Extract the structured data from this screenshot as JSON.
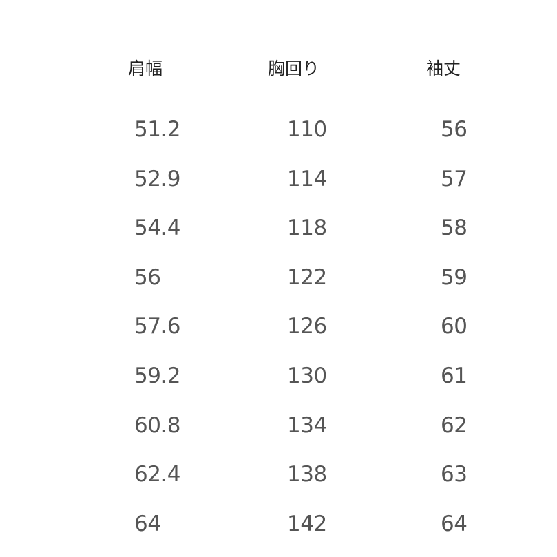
{
  "table": {
    "headers": [
      "肩幅",
      "胸回り",
      "袖丈"
    ],
    "rows": [
      [
        "51.2",
        "110",
        "56"
      ],
      [
        "52.9",
        "114",
        "57"
      ],
      [
        "54.4",
        "118",
        "58"
      ],
      [
        "56",
        "122",
        "59"
      ],
      [
        "57.6",
        "126",
        "60"
      ],
      [
        "59.2",
        "130",
        "61"
      ],
      [
        "60.8",
        "134",
        "62"
      ],
      [
        "62.4",
        "138",
        "63"
      ],
      [
        "64",
        "142",
        "64"
      ]
    ]
  }
}
